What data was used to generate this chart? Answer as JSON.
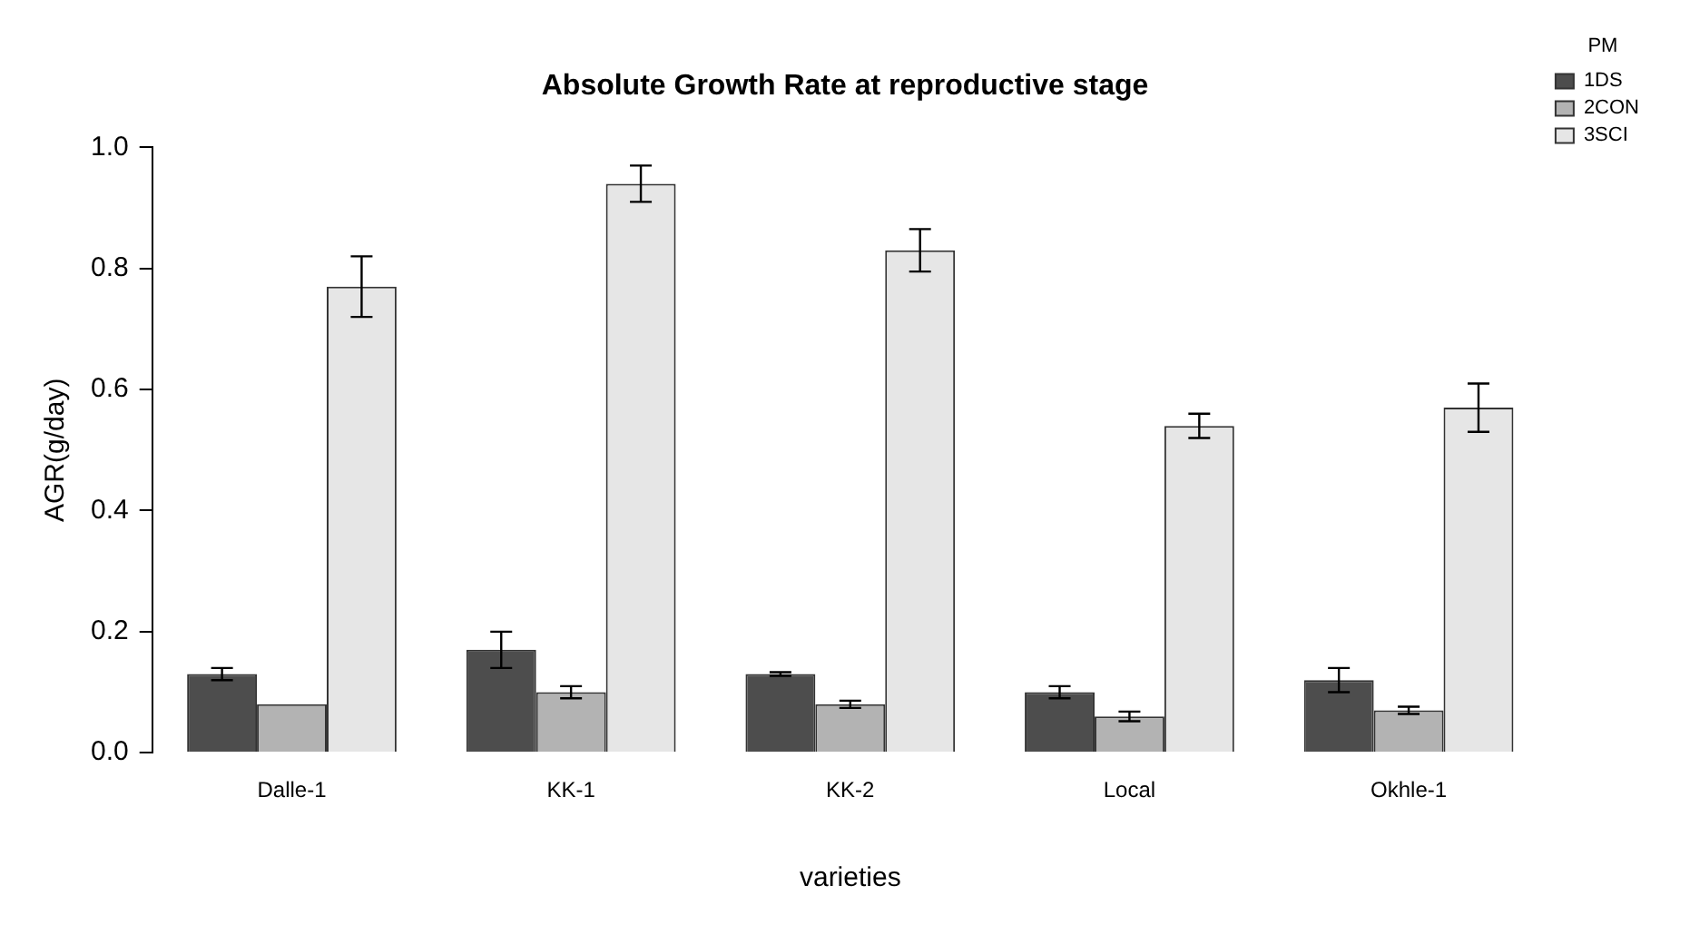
{
  "chart_data": {
    "type": "bar",
    "title": "Absolute Growth Rate at reproductive stage",
    "xlabel": "varieties",
    "ylabel": "AGR(g/day)",
    "legend_title": "PM",
    "categories": [
      "Dalle-1",
      "KK-1",
      "KK-2",
      "Local",
      "Okhle-1"
    ],
    "series": [
      {
        "name": "1DS",
        "color": "#4d4d4d",
        "values": [
          0.13,
          0.17,
          0.13,
          0.1,
          0.12
        ],
        "errors": [
          0.01,
          0.03,
          0.003,
          0.01,
          0.02
        ]
      },
      {
        "name": "2CON",
        "color": "#b3b3b3",
        "values": [
          0.08,
          0.1,
          0.08,
          0.06,
          0.07
        ],
        "errors": [
          null,
          0.01,
          0.006,
          0.008,
          0.006
        ]
      },
      {
        "name": "3SCI",
        "color": "#e6e6e6",
        "values": [
          0.77,
          0.94,
          0.83,
          0.54,
          0.57
        ],
        "errors": [
          0.05,
          0.03,
          0.035,
          0.02,
          0.04
        ]
      }
    ],
    "ylim": [
      0,
      1
    ],
    "yticks": [
      {
        "value": 0,
        "label": "0.0"
      },
      0.2,
      0.4,
      0.6,
      0.8,
      {
        "value": 1,
        "label": "1.0"
      }
    ],
    "grid": false,
    "legend": "top right"
  }
}
